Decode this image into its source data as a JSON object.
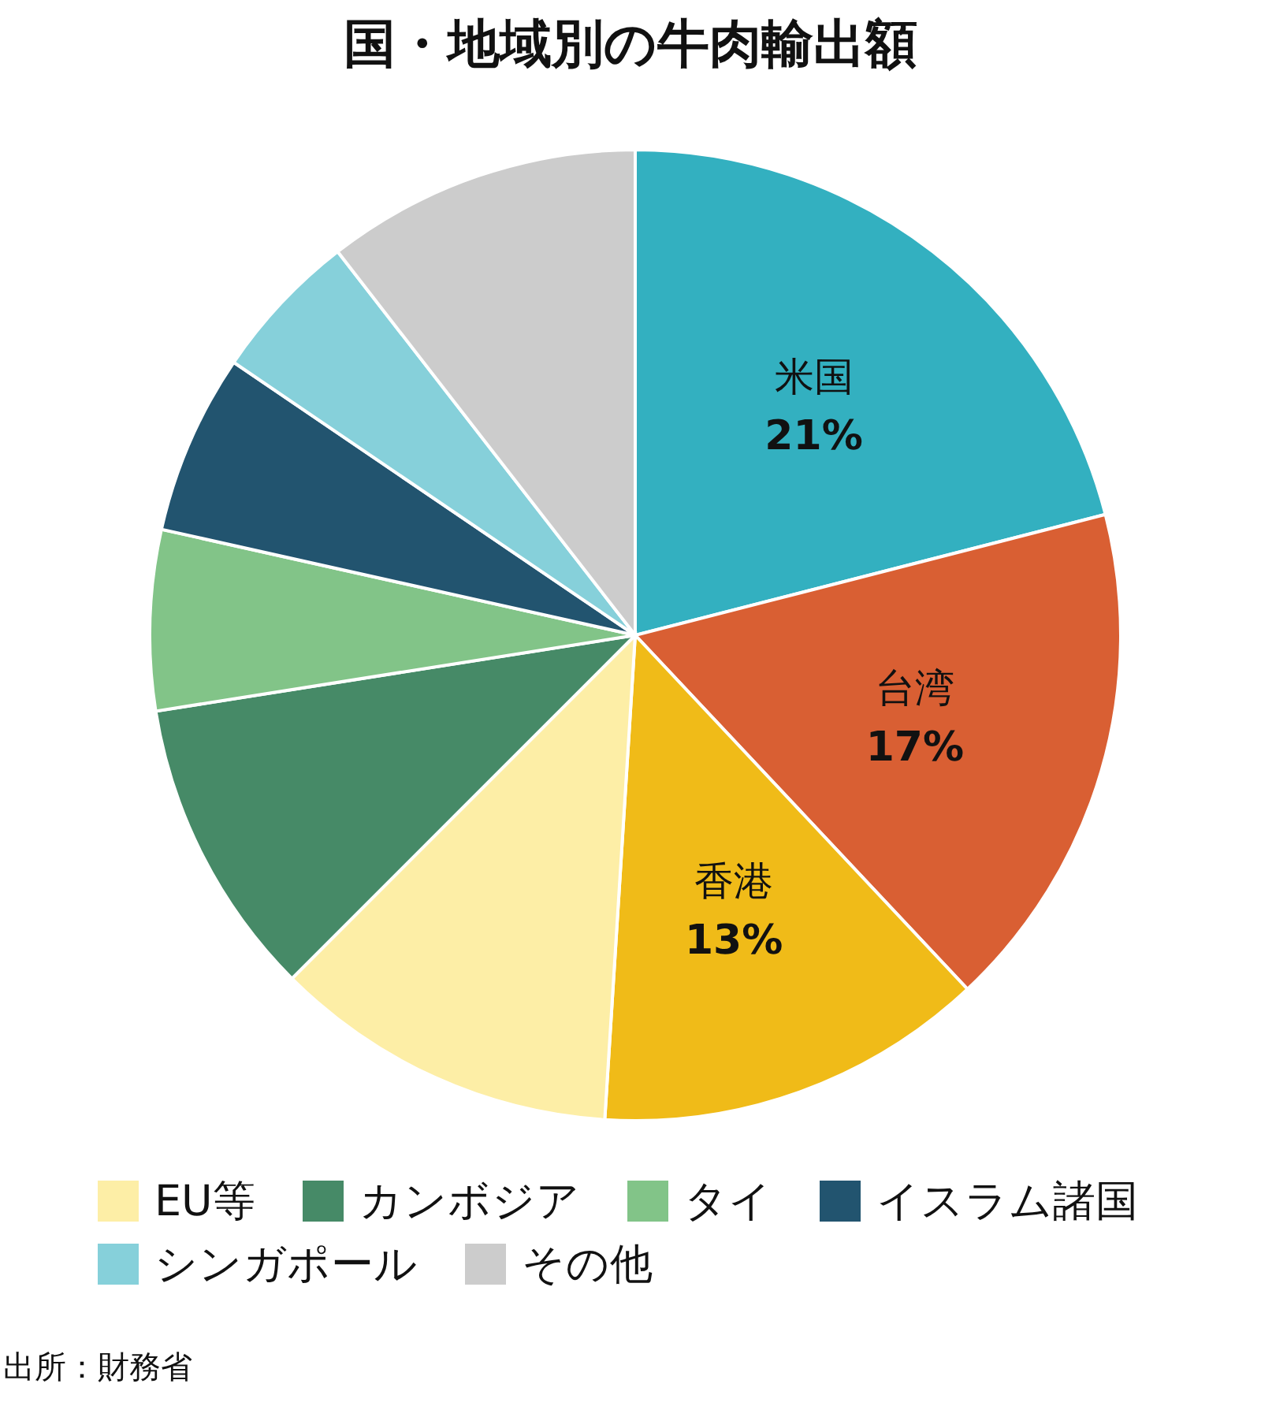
{
  "chart_data": {
    "type": "pie",
    "title": "国・地域別の牛肉輸出額",
    "categories": [
      "米国",
      "台湾",
      "香港",
      "EU等",
      "カンボジア",
      "タイ",
      "イスラム諸国",
      "シンガポール",
      "その他"
    ],
    "values": [
      21,
      17,
      13,
      11.5,
      10,
      6,
      6,
      5,
      10.5
    ],
    "colors": [
      "#33b0c0",
      "#d95f33",
      "#f0bb18",
      "#fdeea6",
      "#468a67",
      "#82c488",
      "#22546f",
      "#86d0da",
      "#cccccc"
    ],
    "value_labels": [
      "21%",
      "17%",
      "13%",
      null,
      null,
      null,
      null,
      null,
      null
    ],
    "legend": "bottom",
    "annotations": [
      "出所：財務省"
    ]
  }
}
